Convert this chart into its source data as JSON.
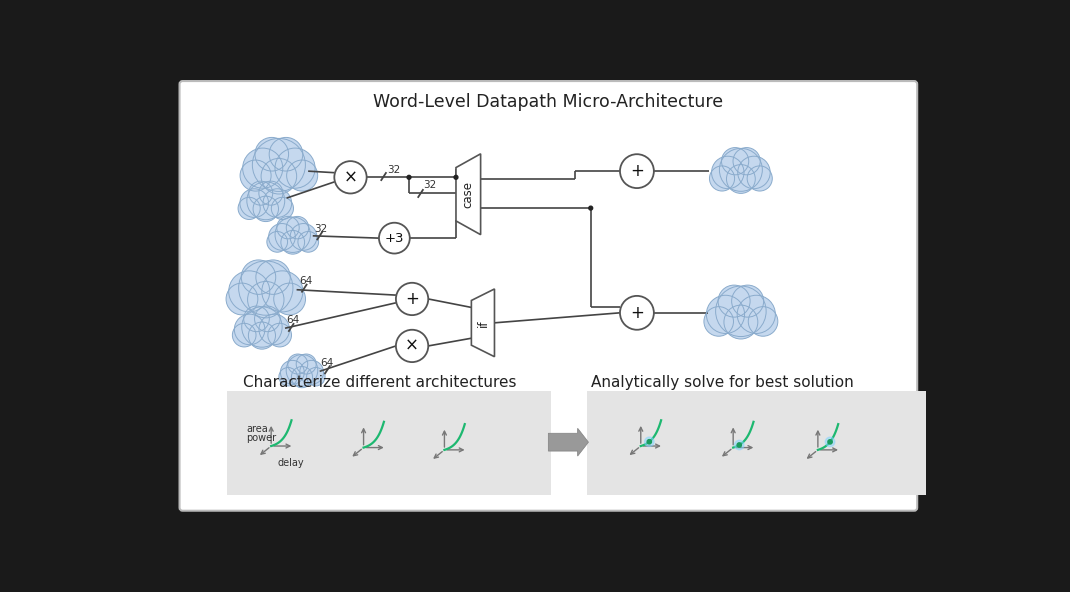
{
  "title": "Word-Level Datapath Micro-Architecture",
  "bg_color": "#ffffff",
  "outer_bg": "#1a1a1a",
  "diagram_bg": "#ffffff",
  "bottom_left_bg": "#e4e4e4",
  "bottom_right_bg": "#e4e4e4",
  "cloud_color": "#c5d8ee",
  "cloud_edge": "#8aabcc",
  "circle_color": "#ffffff",
  "circle_edge": "#555555",
  "line_color": "#444444",
  "mux_color": "#ffffff",
  "mux_edge": "#555555",
  "curve_color": "#1db870",
  "dot_color": "#1a9c5e",
  "dot_glow": "#80d4ff",
  "arrow_color": "#777777",
  "text_color": "#333333",
  "label_color": "#222222",
  "section_label_left": "Characterize different architectures",
  "section_label_right": "Analytically solve for best solution",
  "axis_label_area": "area",
  "axis_label_power": "power",
  "axis_label_delay": "delay"
}
